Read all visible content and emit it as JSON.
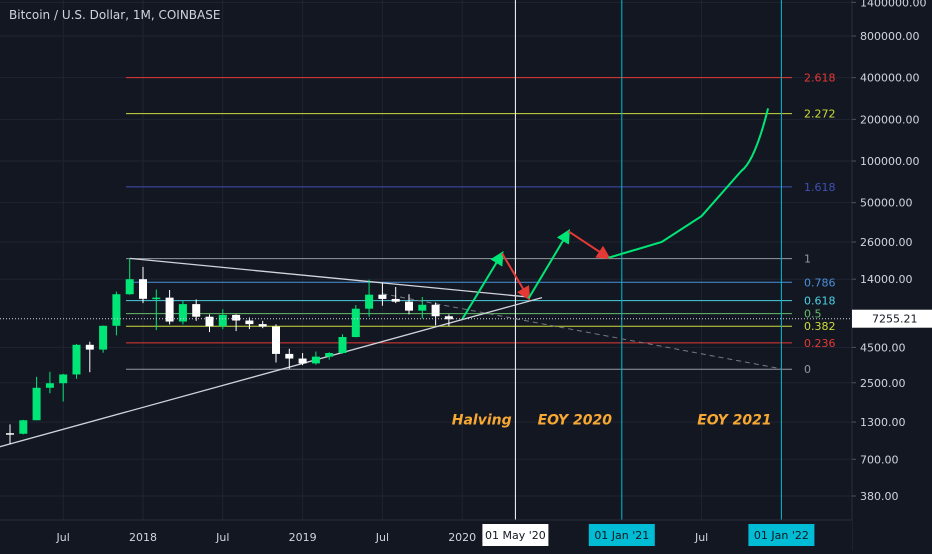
{
  "chart_data": {
    "type": "candlestick",
    "title": "Bitcoin / U.S. Dollar, 1M, COINBASE",
    "y_scale": "log",
    "ylim": [
      250,
      1600000
    ],
    "xlim": [
      "2017-03",
      "2022-02"
    ],
    "last_price": {
      "label": "7255.21",
      "value": 7255.21
    },
    "y_ticks": [
      {
        "label": "1400000.00",
        "value": 1400000
      },
      {
        "label": "800000.00",
        "value": 800000
      },
      {
        "label": "400000.00",
        "value": 400000
      },
      {
        "label": "200000.00",
        "value": 200000
      },
      {
        "label": "100000.00",
        "value": 100000
      },
      {
        "label": "50000.00",
        "value": 50000
      },
      {
        "label": "26000.00",
        "value": 26000
      },
      {
        "label": "14000.00",
        "value": 14000
      },
      {
        "label": "4500.00",
        "value": 4500
      },
      {
        "label": "2500.00",
        "value": 2500
      },
      {
        "label": "1300.00",
        "value": 1300
      },
      {
        "label": "700.00",
        "value": 700
      },
      {
        "label": "380.00",
        "value": 380
      }
    ],
    "x_ticks": [
      {
        "label": "Jul",
        "date": "2017-07"
      },
      {
        "label": "2018",
        "date": "2018-01"
      },
      {
        "label": "Jul",
        "date": "2018-07"
      },
      {
        "label": "2019",
        "date": "2019-01"
      },
      {
        "label": "Jul",
        "date": "2019-07"
      },
      {
        "label": "2020",
        "date": "2020-01"
      },
      {
        "label": "Jul",
        "date": "2021-07"
      }
    ],
    "x_markers": [
      {
        "label": "01 May '20",
        "date": "2020-05-01",
        "color": "#ffffff",
        "label_bg": "#ffffff",
        "label_color": "#131722"
      },
      {
        "label": "01 Jan '21",
        "date": "2021-01-01",
        "color": "#00bcd4",
        "label_bg": "#00bcd4",
        "label_color": "#131722"
      },
      {
        "label": "01 Jan '22",
        "date": "2022-01-01",
        "color": "#00bcd4",
        "label_bg": "#00bcd4",
        "label_color": "#131722"
      }
    ],
    "fib_levels": [
      {
        "label": "2.618",
        "value": 400000,
        "color": "#e53935"
      },
      {
        "label": "2.272",
        "value": 220000,
        "color": "#cddc39"
      },
      {
        "label": "1.618",
        "value": 65000,
        "color": "#3f51b5"
      },
      {
        "label": "1",
        "value": 19700,
        "color": "#9598a1"
      },
      {
        "label": "0.786",
        "value": 13300,
        "color": "#4a90d9"
      },
      {
        "label": "0.618",
        "value": 9800,
        "color": "#4dd0e1"
      },
      {
        "label": "0.5",
        "value": 7900,
        "color": "#66bb6a"
      },
      {
        "label": "0.382",
        "value": 6400,
        "color": "#cddc39"
      },
      {
        "label": "0.236",
        "value": 4850,
        "color": "#e53935"
      },
      {
        "label": "0",
        "value": 3130,
        "color": "#9598a1"
      }
    ],
    "annotations": [
      {
        "text": "Halving",
        "date": "2020-02-15",
        "value": 1250,
        "color": "#f7a833"
      },
      {
        "text": "EOY 2020",
        "date": "2020-09-15",
        "value": 1250,
        "color": "#f7a833"
      },
      {
        "text": "EOY 2021",
        "date": "2021-09-15",
        "value": 1250,
        "color": "#f7a833"
      }
    ],
    "candles": [
      {
        "date": "2017-03",
        "open": 1080,
        "high": 1250,
        "low": 900,
        "close": 1070
      },
      {
        "date": "2017-04",
        "open": 1070,
        "high": 1350,
        "low": 1060,
        "close": 1340
      },
      {
        "date": "2017-05",
        "open": 1340,
        "high": 2760,
        "low": 1340,
        "close": 2300
      },
      {
        "date": "2017-06",
        "open": 2300,
        "high": 3000,
        "low": 2100,
        "close": 2480
      },
      {
        "date": "2017-07",
        "open": 2480,
        "high": 2900,
        "low": 1830,
        "close": 2870
      },
      {
        "date": "2017-08",
        "open": 2870,
        "high": 4750,
        "low": 2670,
        "close": 4700
      },
      {
        "date": "2017-09",
        "open": 4700,
        "high": 4950,
        "low": 2980,
        "close": 4340
      },
      {
        "date": "2017-10",
        "open": 4340,
        "high": 6470,
        "low": 4120,
        "close": 6450
      },
      {
        "date": "2017-11",
        "open": 6450,
        "high": 11400,
        "low": 5500,
        "close": 10900
      },
      {
        "date": "2017-12",
        "open": 10900,
        "high": 19800,
        "low": 10800,
        "close": 14000
      },
      {
        "date": "2018-01",
        "open": 14000,
        "high": 17200,
        "low": 9400,
        "close": 10100
      },
      {
        "date": "2018-02",
        "open": 10100,
        "high": 11800,
        "low": 6000,
        "close": 10300
      },
      {
        "date": "2018-03",
        "open": 10300,
        "high": 11700,
        "low": 6600,
        "close": 6920
      },
      {
        "date": "2018-04",
        "open": 6920,
        "high": 9800,
        "low": 6600,
        "close": 9250
      },
      {
        "date": "2018-05",
        "open": 9250,
        "high": 10000,
        "low": 7000,
        "close": 7500
      },
      {
        "date": "2018-06",
        "open": 7500,
        "high": 7800,
        "low": 5800,
        "close": 6400
      },
      {
        "date": "2018-07",
        "open": 6400,
        "high": 8500,
        "low": 6100,
        "close": 7730
      },
      {
        "date": "2018-08",
        "open": 7730,
        "high": 7800,
        "low": 5900,
        "close": 7040
      },
      {
        "date": "2018-09",
        "open": 7040,
        "high": 7400,
        "low": 6100,
        "close": 6630
      },
      {
        "date": "2018-10",
        "open": 6630,
        "high": 7000,
        "low": 6200,
        "close": 6370
      },
      {
        "date": "2018-11",
        "open": 6370,
        "high": 6600,
        "low": 3500,
        "close": 4040
      },
      {
        "date": "2018-12",
        "open": 4040,
        "high": 4400,
        "low": 3150,
        "close": 3740
      },
      {
        "date": "2019-01",
        "open": 3740,
        "high": 4100,
        "low": 3350,
        "close": 3450
      },
      {
        "date": "2019-02",
        "open": 3450,
        "high": 4200,
        "low": 3380,
        "close": 3860
      },
      {
        "date": "2019-03",
        "open": 3860,
        "high": 4150,
        "low": 3670,
        "close": 4100
      },
      {
        "date": "2019-04",
        "open": 4100,
        "high": 5600,
        "low": 4050,
        "close": 5350
      },
      {
        "date": "2019-05",
        "open": 5350,
        "high": 9100,
        "low": 5320,
        "close": 8570
      },
      {
        "date": "2019-06",
        "open": 8570,
        "high": 13900,
        "low": 7500,
        "close": 10820
      },
      {
        "date": "2019-07",
        "open": 10820,
        "high": 13200,
        "low": 9000,
        "close": 10080
      },
      {
        "date": "2019-08",
        "open": 10080,
        "high": 12300,
        "low": 9400,
        "close": 9630
      },
      {
        "date": "2019-09",
        "open": 9630,
        "high": 10900,
        "low": 7800,
        "close": 8300
      },
      {
        "date": "2019-10",
        "open": 8300,
        "high": 10400,
        "low": 7300,
        "close": 9150
      },
      {
        "date": "2019-11",
        "open": 9150,
        "high": 9500,
        "low": 6500,
        "close": 7560
      },
      {
        "date": "2019-12",
        "open": 7560,
        "high": 7800,
        "low": 6400,
        "close": 7190
      }
    ],
    "drawings": {
      "descending_trendline": {
        "from": {
          "date": "2017-12",
          "value": 19800
        },
        "to": {
          "date": "2020-06",
          "value": 10400
        },
        "color": "#d1d4dc"
      },
      "descending_extension": {
        "from": {
          "date": "2019-07",
          "value": 11000
        },
        "to": {
          "date": "2022-01",
          "value": 3150
        },
        "color": "#787b86",
        "dashed": true
      },
      "ascending_trendline": {
        "from": {
          "date": "2017-01",
          "value": 800
        },
        "to": {
          "date": "2020-07",
          "value": 10300
        },
        "color": "#d1d4dc"
      },
      "projection_path": [
        {
          "date": "2020-01",
          "value": 7190,
          "color": "#00e676"
        },
        {
          "date": "2020-04",
          "value": 21500,
          "color": "#e53935"
        },
        {
          "date": "2020-06",
          "value": 10200,
          "color": "#00e676"
        },
        {
          "date": "2020-09",
          "value": 31000,
          "color": "#e53935"
        },
        {
          "date": "2020-12",
          "value": 20000,
          "color": "#00e676"
        }
      ],
      "projection_curve": {
        "points": [
          {
            "date": "2020-12",
            "value": 20000
          },
          {
            "date": "2021-04",
            "value": 26000
          },
          {
            "date": "2021-07",
            "value": 40000
          },
          {
            "date": "2021-10",
            "value": 85000
          },
          {
            "date": "2021-12",
            "value": 240000
          }
        ],
        "color": "#00e676"
      }
    },
    "colors": {
      "up": "#00e676",
      "down": "#ffffff",
      "axis_text": "#d1d4dc",
      "grid": "#1f2430",
      "background": "#131722"
    }
  }
}
